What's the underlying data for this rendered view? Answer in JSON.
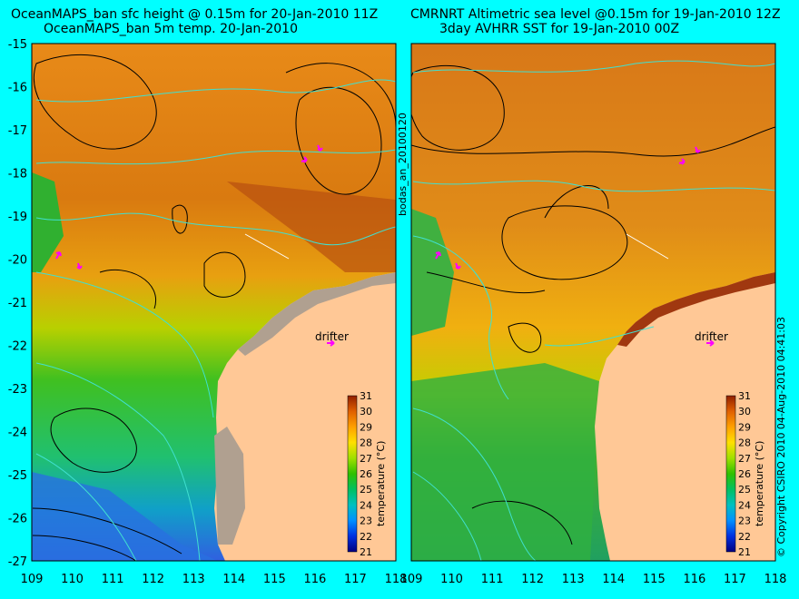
{
  "left_panel": {
    "title_line1": "OceanMAPS_ban sfc height @ 0.15m for 20-Jan-2010 11Z",
    "title_line2": "OceanMAPS_ban 5m temp. 20-Jan-2010",
    "drifter_label": "drifter",
    "colorbar_label": "temperature (°C)"
  },
  "right_panel": {
    "title_line1": "CMRNRT Altimetric sea level  @0.15m  for 19-Jan-2010 12Z",
    "title_line2": "3day AVHRR SST for 19-Jan-2010 00Z",
    "drifter_label": "drifter",
    "colorbar_label": "temperature (°C)",
    "vertical_label": "bodas_an_20100120"
  },
  "copyright": "© Copyright CSIRO 2010   04-Aug-2010 04:41:03",
  "axes": {
    "lat_ticks": [
      "-15",
      "-16",
      "-17",
      "-18",
      "-19",
      "-20",
      "-21",
      "-22",
      "-23",
      "-24",
      "-25",
      "-26",
      "-27"
    ],
    "lon_ticks": [
      "109",
      "110",
      "111",
      "112",
      "113",
      "114",
      "115",
      "116",
      "117",
      "118"
    ]
  },
  "colorbar": {
    "ticks": [
      "31",
      "30",
      "29",
      "28",
      "27",
      "26",
      "25",
      "24",
      "23",
      "22",
      "21"
    ],
    "range": [
      21,
      31
    ],
    "colors": [
      "#000080",
      "#0040ff",
      "#00a0ff",
      "#00d0a0",
      "#20c040",
      "#60d000",
      "#c0e000",
      "#ffd000",
      "#ff9000",
      "#d05000",
      "#902000"
    ]
  },
  "colors": {
    "background": "#00ffff",
    "land": "#ffc896",
    "land_gray": "#b0a090",
    "contour_black": "#000000",
    "contour_cyan": "#40e0d0",
    "drifter_arrow": "#ff00ff"
  }
}
